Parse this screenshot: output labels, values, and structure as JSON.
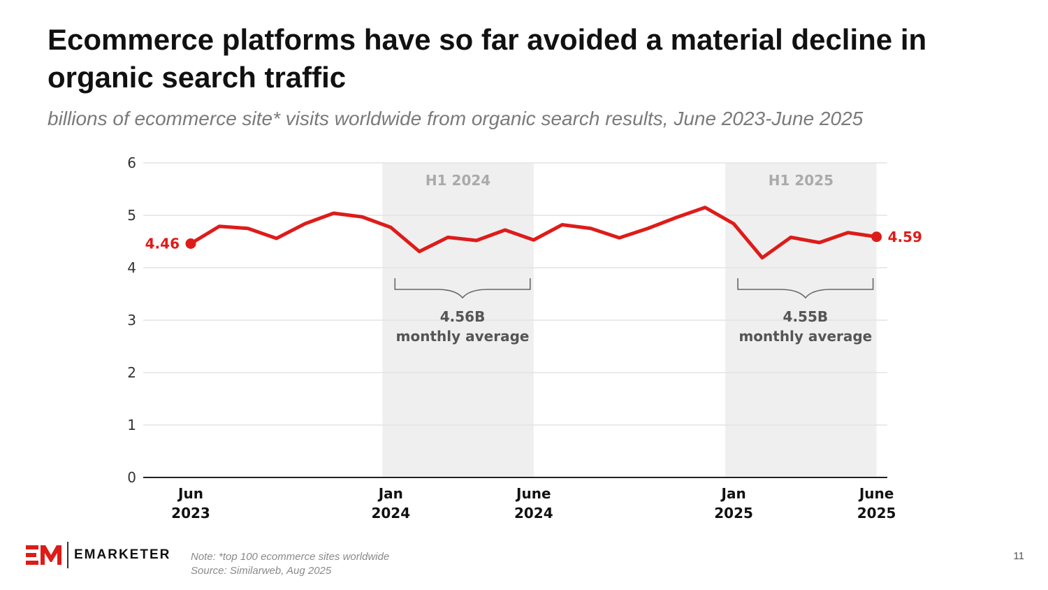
{
  "slide": {
    "title": "Ecommerce platforms have so far avoided a material decline in organic search traffic",
    "subtitle": "billions of ecommerce site* visits worldwide from organic search results, June 2023-June 2025",
    "note": "Note: *top 100 ecommerce sites worldwide",
    "source": "Source: Similarweb, Aug 2025",
    "page_number": "11",
    "logo_text": "EMARKETER",
    "logo_mark": "EM"
  },
  "colors": {
    "series": "#dd1c1a",
    "band": "#efefef",
    "grid": "#e4e4e4",
    "axis": "#222222"
  },
  "chart_data": {
    "type": "line",
    "title": "",
    "xlabel": "",
    "ylabel": "",
    "ylim": [
      0,
      6
    ],
    "yticks": [
      0,
      1,
      2,
      3,
      4,
      5,
      6
    ],
    "grid": true,
    "x": [
      "2023-06",
      "2023-07",
      "2023-08",
      "2023-09",
      "2023-10",
      "2023-11",
      "2023-12",
      "2024-01",
      "2024-02",
      "2024-03",
      "2024-04",
      "2024-05",
      "2024-06",
      "2024-07",
      "2024-08",
      "2024-09",
      "2024-10",
      "2024-11",
      "2024-12",
      "2025-01",
      "2025-02",
      "2025-03",
      "2025-04",
      "2025-05",
      "2025-06"
    ],
    "x_tick_labels": [
      {
        "x": "2023-06",
        "line1": "Jun",
        "line2": "2023"
      },
      {
        "x": "2024-01",
        "line1": "Jan",
        "line2": "2024"
      },
      {
        "x": "2024-06",
        "line1": "June",
        "line2": "2024"
      },
      {
        "x": "2025-01",
        "line1": "Jan",
        "line2": "2025"
      },
      {
        "x": "2025-06",
        "line1": "June",
        "line2": "2025"
      }
    ],
    "series": [
      {
        "values": [
          4.46,
          4.79,
          4.75,
          4.56,
          4.84,
          5.04,
          4.97,
          4.77,
          4.31,
          4.58,
          4.52,
          4.72,
          4.53,
          4.82,
          4.75,
          4.57,
          4.75,
          4.96,
          5.15,
          4.84,
          4.19,
          4.58,
          4.48,
          4.67,
          4.59
        ]
      }
    ],
    "end_labels": {
      "start": "4.46",
      "end": "4.59"
    },
    "bands": [
      {
        "label": "H1 2024",
        "from": "2024-01",
        "to": "2024-06",
        "avg_value": "4.56B",
        "avg_text": "monthly average"
      },
      {
        "label": "H1 2025",
        "from": "2025-01",
        "to": "2025-06",
        "avg_value": "4.55B",
        "avg_text": "monthly average"
      }
    ]
  }
}
